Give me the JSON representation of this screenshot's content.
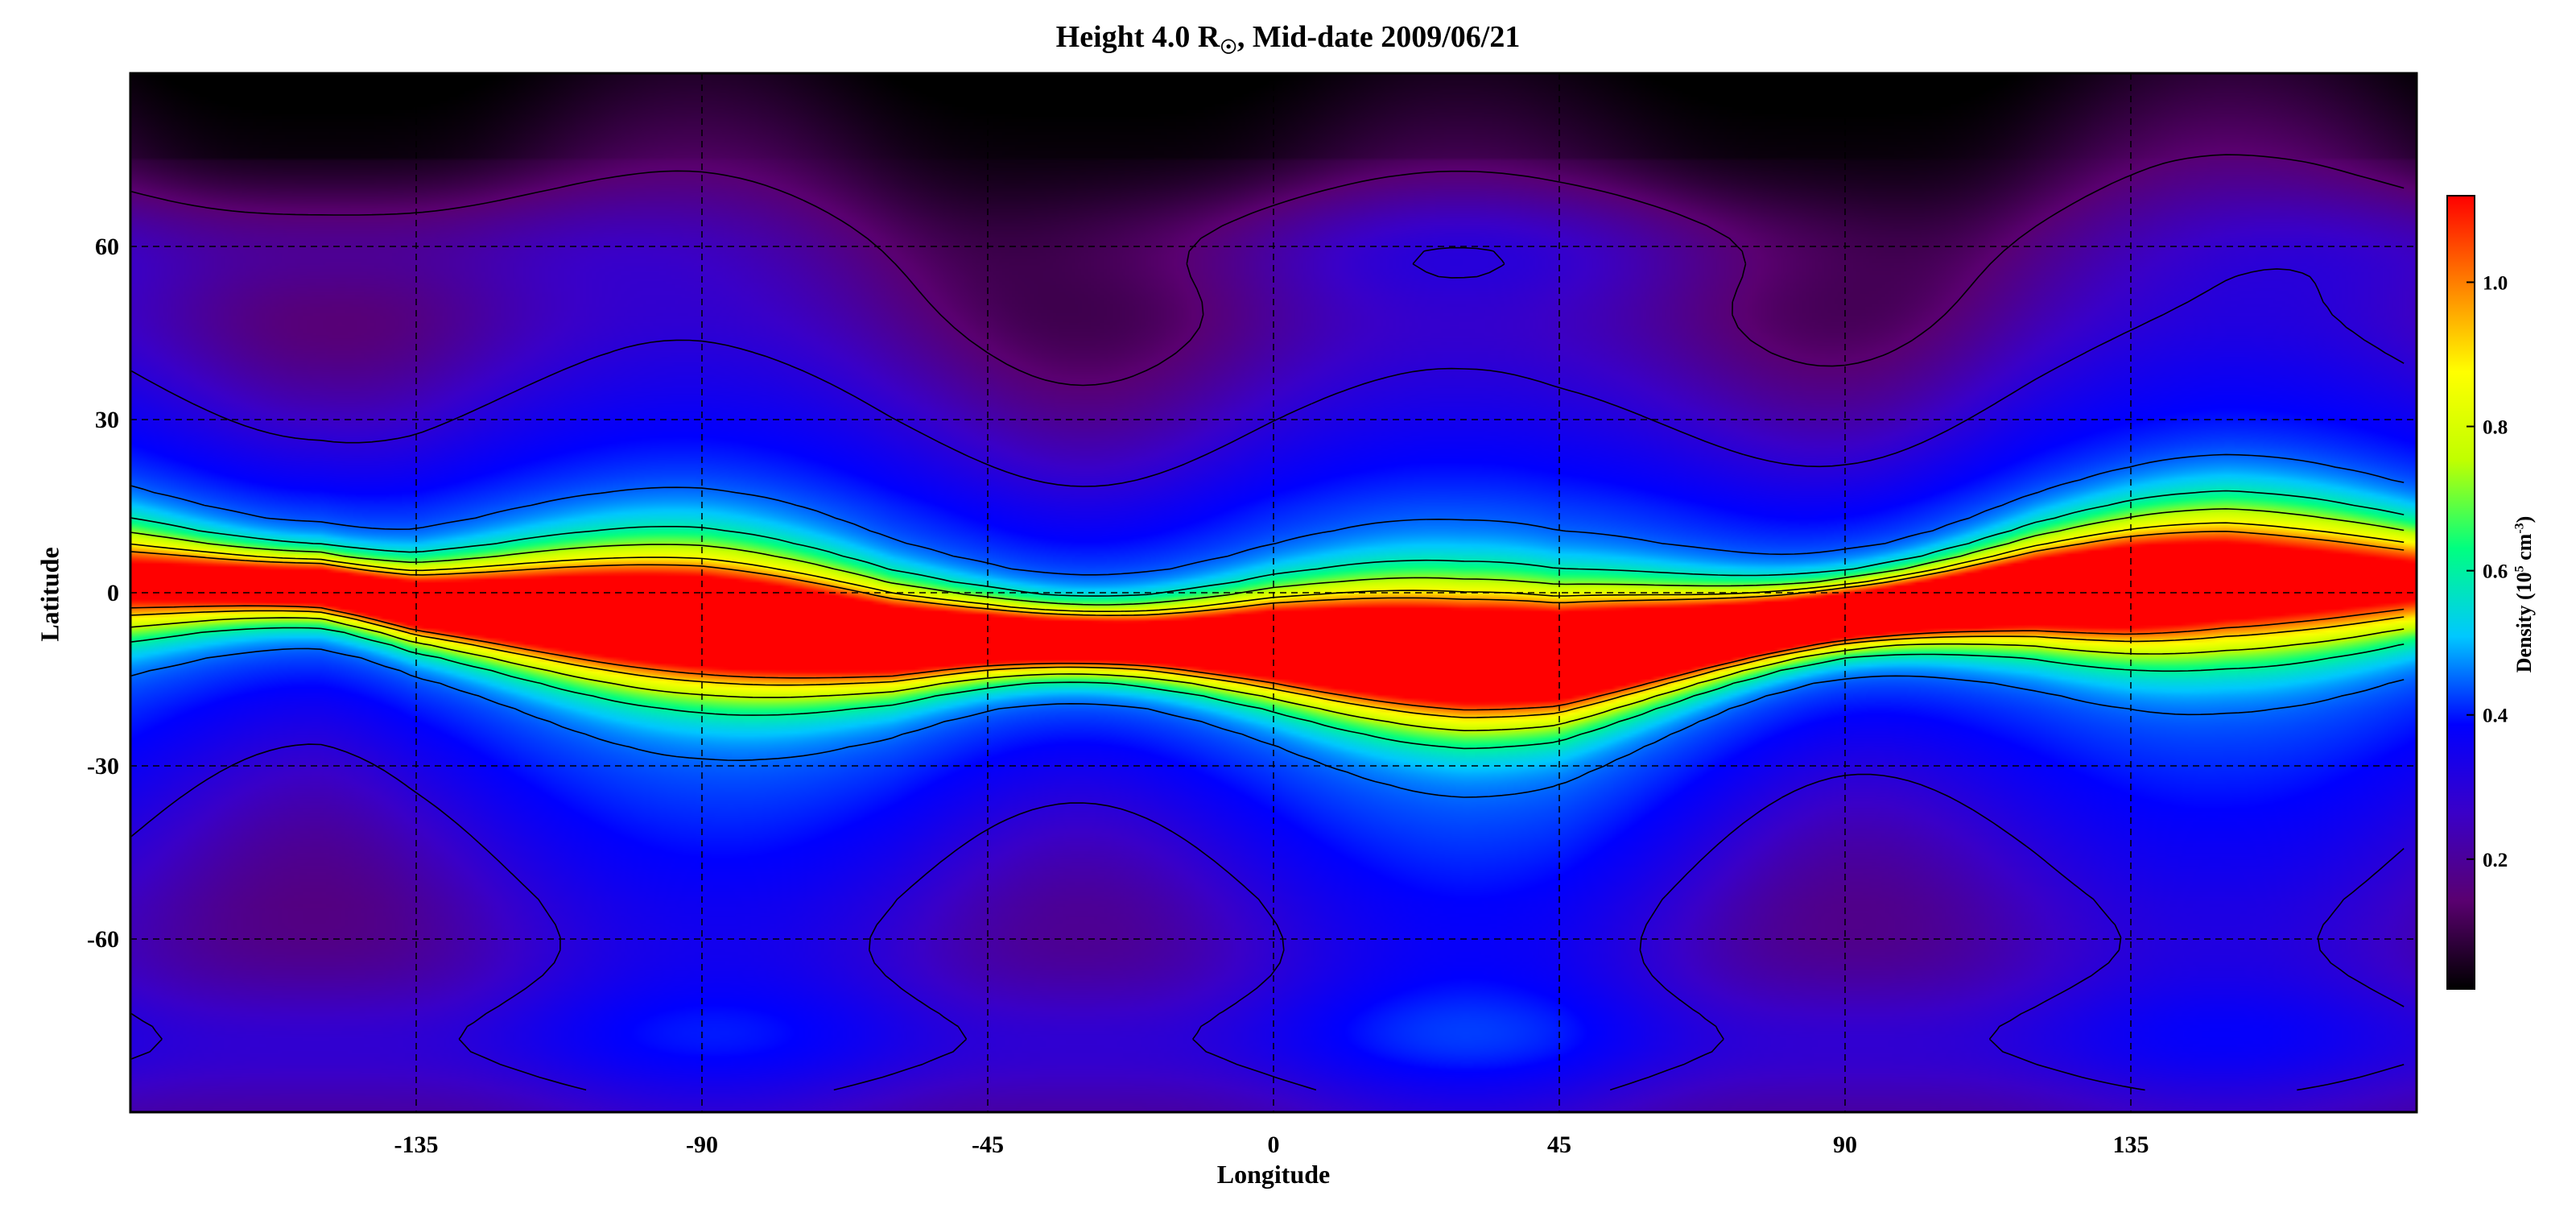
{
  "chart_data": {
    "type": "heatmap",
    "title_main": "Height 4.0 R",
    "title_sub": "☉",
    "title_rest": ", Mid-date 2009/06/21",
    "xlabel": "Longitude",
    "ylabel": "Latitude",
    "colorbar_label_main": "Density (10",
    "colorbar_label_sup": "5",
    "colorbar_label_mid": " cm",
    "colorbar_label_sup2": "-3",
    "colorbar_label_end": ")",
    "xlim": [
      -180,
      180
    ],
    "ylim": [
      -90,
      90
    ],
    "x_ticks": [
      -135,
      -90,
      -45,
      0,
      45,
      90,
      135
    ],
    "y_ticks": [
      60,
      30,
      0,
      -30,
      -60
    ],
    "x_tick_labels": [
      "-135",
      "-90",
      "-45",
      "0",
      "45",
      "90",
      "135"
    ],
    "y_tick_labels": [
      "60",
      "30",
      "0",
      "-30",
      "-60"
    ],
    "colorbar_range": [
      0.02,
      1.12
    ],
    "colorbar_ticks": [
      0.2,
      0.4,
      0.6,
      0.8,
      1.0
    ],
    "colorbar_tick_labels": [
      "0.2",
      "0.4",
      "0.6",
      "0.8",
      "1.0"
    ],
    "grid": true,
    "colormap": [
      "#000000",
      "#5a0070",
      "#3a00c8",
      "#0000ff",
      "#00c8ff",
      "#00ff80",
      "#c0ff00",
      "#ffff00",
      "#ff8000",
      "#ff0000"
    ],
    "streamer_belt_latitude": [
      {
        "lon": -180,
        "lat": 2
      },
      {
        "lon": -150,
        "lat": 1
      },
      {
        "lon": -135,
        "lat": -2
      },
      {
        "lon": -90,
        "lat": -5
      },
      {
        "lon": -60,
        "lat": -8
      },
      {
        "lon": -45,
        "lat": -8
      },
      {
        "lon": 0,
        "lat": -9
      },
      {
        "lon": 30,
        "lat": -11
      },
      {
        "lon": 45,
        "lat": -11
      },
      {
        "lon": 90,
        "lat": -4
      },
      {
        "lon": 120,
        "lat": 0
      },
      {
        "lon": 135,
        "lat": 1
      },
      {
        "lon": 150,
        "lat": 2
      },
      {
        "lon": 180,
        "lat": 2
      }
    ],
    "peak_density": [
      {
        "lon": -180,
        "value": 0.75
      },
      {
        "lon": -135,
        "value": 0.95
      },
      {
        "lon": -90,
        "value": 1.05
      },
      {
        "lon": -45,
        "value": 1.0
      },
      {
        "lon": -20,
        "value": 0.95
      },
      {
        "lon": 0,
        "value": 1.05
      },
      {
        "lon": 45,
        "value": 1.1
      },
      {
        "lon": 90,
        "value": 1.08
      },
      {
        "lon": 135,
        "value": 1.02
      },
      {
        "lon": 160,
        "value": 0.85
      },
      {
        "lon": 180,
        "value": 0.75
      }
    ]
  }
}
